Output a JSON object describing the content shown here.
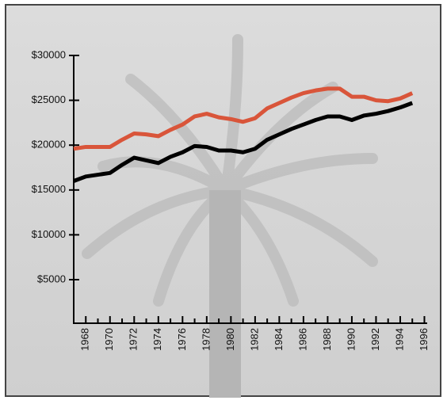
{
  "chart_data": {
    "type": "line",
    "x": [
      1967,
      1968,
      1969,
      1970,
      1971,
      1972,
      1973,
      1974,
      1975,
      1976,
      1977,
      1978,
      1979,
      1980,
      1981,
      1982,
      1983,
      1984,
      1985,
      1986,
      1987,
      1988,
      1989,
      1990,
      1991,
      1992,
      1993,
      1994,
      1995
    ],
    "series": [
      {
        "color": "#d9553a",
        "values": [
          19600,
          19800,
          19800,
          19800,
          20600,
          21300,
          21200,
          21000,
          21700,
          22300,
          23200,
          23500,
          23100,
          22900,
          22600,
          23000,
          24100,
          24700,
          25300,
          25800,
          26100,
          26300,
          26300,
          25400,
          25400,
          25000,
          24900,
          25200,
          25800
        ]
      },
      {
        "color": "#000000",
        "values": [
          16000,
          16500,
          16700,
          16900,
          17800,
          18600,
          18300,
          18000,
          18700,
          19200,
          19900,
          19800,
          19400,
          19400,
          19200,
          19600,
          20600,
          21200,
          21800,
          22300,
          22800,
          23200,
          23200,
          22800,
          23300,
          23500,
          23800,
          24200,
          24700
        ]
      }
    ],
    "xlim": [
      1967,
      1996.1
    ],
    "xticks": [
      1968,
      1970,
      1972,
      1974,
      1976,
      1978,
      1980,
      1982,
      1984,
      1986,
      1988,
      1990,
      1992,
      1994,
      1996
    ],
    "ylim": [
      0,
      30000
    ],
    "yticks": [
      {
        "value": 5000,
        "label": "$5000"
      },
      {
        "value": 10000,
        "label": "$10000"
      },
      {
        "value": 15000,
        "label": "$15000"
      },
      {
        "value": 20000,
        "label": "$20000"
      },
      {
        "value": 25000,
        "label": "$25000"
      },
      {
        "value": 30000,
        "label": "$30000"
      }
    ]
  }
}
